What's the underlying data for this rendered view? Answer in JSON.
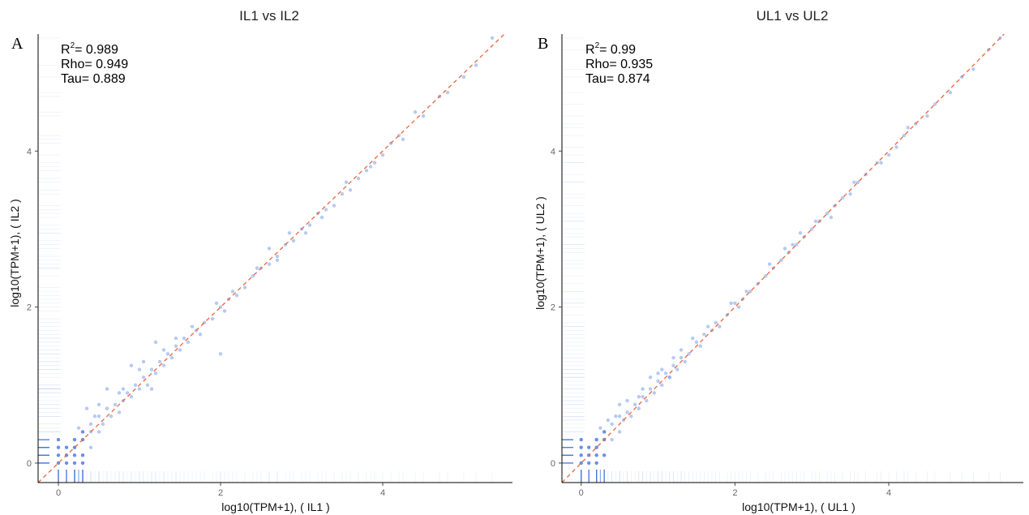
{
  "chart_data": [
    {
      "type": "scatter",
      "panel_label": "A",
      "title": "IL1  vs  IL2",
      "xlabel": "log10(TPM+1),  ( IL1 )",
      "ylabel": "log10(TPM+1),  ( IL2 )",
      "xlim": [
        -0.25,
        5.6
      ],
      "ylim": [
        -0.25,
        5.5
      ],
      "xticks": [
        "0",
        "2",
        "4"
      ],
      "yticks": [
        "0",
        "2",
        "4"
      ],
      "stats": {
        "r2_label": "R",
        "r2_sup": "2",
        "r2_value": "= 0.989",
        "rho": "Rho= 0.949",
        "tau": "Tau= 0.889"
      },
      "reference_line": "y = x (dashed)",
      "rug": "both axes",
      "colors": {
        "points": "#7a9ee8",
        "line": "#e8663c",
        "rug": "#3d6fd6"
      },
      "x": [
        0,
        0,
        0,
        0,
        0.1,
        0.1,
        0.1,
        0.2,
        0.2,
        0.2,
        0.2,
        0.3,
        0.3,
        0.3,
        0.3,
        0.4,
        0.4,
        0.4,
        0.5,
        0.5,
        0.55,
        0.6,
        0.65,
        0.7,
        0.75,
        0.8,
        0.85,
        0.9,
        0.95,
        1.0,
        1.05,
        1.1,
        1.15,
        1.2,
        1.25,
        1.3,
        1.35,
        1.4,
        1.45,
        1.5,
        1.55,
        1.6,
        1.7,
        1.75,
        1.8,
        1.9,
        2.0,
        2.0,
        2.05,
        2.1,
        2.2,
        2.3,
        2.4,
        2.5,
        2.6,
        2.7,
        2.8,
        2.9,
        3.0,
        3.1,
        3.2,
        3.3,
        3.4,
        3.5,
        3.6,
        3.7,
        3.8,
        3.9,
        4.0,
        4.1,
        4.2,
        4.4,
        4.5,
        4.7,
        4.8,
        5.0,
        5.15,
        5.35,
        0.35,
        0.6,
        0.9,
        1.2,
        0.45,
        0.75,
        1.05,
        2.6,
        3.25,
        3.55,
        1.65,
        2.15,
        0.25,
        0.5,
        0.8,
        1.0,
        1.3,
        1.45,
        2.45,
        2.85,
        3.05,
        3.85,
        4.25,
        1.95,
        2.7,
        1.15
      ],
      "y": [
        0,
        0.1,
        0.2,
        0.3,
        0,
        0.1,
        0.2,
        0,
        0.1,
        0.2,
        0.3,
        0,
        0.1,
        0.3,
        0.4,
        0.2,
        0.4,
        0.5,
        0.4,
        0.6,
        0.5,
        0.7,
        0.6,
        0.75,
        0.65,
        0.8,
        0.9,
        0.85,
        1.0,
        0.95,
        1.1,
        1.0,
        1.2,
        1.15,
        1.3,
        1.25,
        1.4,
        1.35,
        1.5,
        1.45,
        1.6,
        1.55,
        1.7,
        1.65,
        1.8,
        1.85,
        1.4,
        2.0,
        1.95,
        2.1,
        2.15,
        2.25,
        2.4,
        2.5,
        2.55,
        2.65,
        2.8,
        2.85,
        3.0,
        3.05,
        3.2,
        3.25,
        3.3,
        3.45,
        3.5,
        3.65,
        3.75,
        3.85,
        3.95,
        4.1,
        4.2,
        4.5,
        4.45,
        4.7,
        4.75,
        4.95,
        5.1,
        5.45,
        0.7,
        0.95,
        1.25,
        1.55,
        0.6,
        0.9,
        1.3,
        2.75,
        3.15,
        3.6,
        1.75,
        2.2,
        0.45,
        0.75,
        0.95,
        1.2,
        1.45,
        1.6,
        2.5,
        2.95,
        2.95,
        3.8,
        4.15,
        2.05,
        2.6,
        0.95
      ]
    },
    {
      "type": "scatter",
      "panel_label": "B",
      "title": "UL1  vs  UL2",
      "xlabel": "log10(TPM+1),  ( UL1 )",
      "ylabel": "log10(TPM+1),  ( UL2 )",
      "xlim": [
        -0.25,
        5.75
      ],
      "ylim": [
        -0.25,
        5.5
      ],
      "xticks": [
        "0",
        "2",
        "4"
      ],
      "yticks": [
        "0",
        "2",
        "4"
      ],
      "stats": {
        "r2_label": "R",
        "r2_sup": "2",
        "r2_value": "= 0.99",
        "rho": "Rho= 0.935",
        "tau": "Tau= 0.874"
      },
      "reference_line": "y = x (dashed)",
      "rug": "both axes",
      "colors": {
        "points": "#7a9ee8",
        "line": "#e8663c",
        "rug": "#3d6fd6"
      },
      "x": [
        0,
        0,
        0,
        0,
        0.1,
        0.1,
        0.1,
        0.2,
        0.2,
        0.2,
        0.2,
        0.3,
        0.3,
        0.3,
        0.4,
        0.4,
        0.5,
        0.5,
        0.55,
        0.6,
        0.65,
        0.7,
        0.75,
        0.8,
        0.85,
        0.9,
        0.95,
        1.0,
        1.05,
        1.1,
        1.15,
        1.2,
        1.25,
        1.3,
        1.35,
        1.4,
        1.5,
        1.55,
        1.6,
        1.7,
        1.75,
        1.8,
        1.9,
        2.0,
        2.05,
        2.1,
        2.2,
        2.3,
        2.4,
        2.5,
        2.6,
        2.7,
        2.8,
        2.9,
        3.0,
        3.1,
        3.2,
        3.3,
        3.4,
        3.5,
        3.6,
        3.7,
        3.85,
        4.0,
        4.1,
        4.2,
        4.35,
        4.5,
        4.6,
        4.8,
        4.95,
        5.1,
        5.3,
        5.45,
        0.35,
        0.6,
        0.9,
        1.2,
        0.45,
        0.75,
        1.05,
        2.65,
        3.25,
        3.55,
        1.65,
        2.15,
        0.25,
        0.5,
        0.8,
        1.0,
        1.3,
        1.45,
        2.45,
        2.85,
        3.05,
        3.9,
        4.25,
        1.95,
        2.75,
        1.15
      ],
      "y": [
        0,
        0.1,
        0.2,
        0.3,
        0,
        0.1,
        0.2,
        0,
        0.1,
        0.2,
        0.3,
        0.1,
        0.3,
        0.4,
        0.3,
        0.5,
        0.4,
        0.6,
        0.55,
        0.65,
        0.6,
        0.75,
        0.7,
        0.85,
        0.8,
        0.95,
        0.9,
        1.05,
        1.0,
        1.15,
        1.1,
        1.25,
        1.2,
        1.35,
        1.3,
        1.4,
        1.55,
        1.5,
        1.65,
        1.7,
        1.8,
        1.75,
        1.9,
        2.05,
        2.0,
        2.1,
        2.2,
        2.3,
        2.4,
        2.5,
        2.6,
        2.7,
        2.8,
        2.9,
        3.0,
        3.1,
        3.2,
        3.3,
        3.4,
        3.45,
        3.6,
        3.7,
        3.85,
        3.95,
        4.05,
        4.2,
        4.35,
        4.45,
        4.6,
        4.75,
        4.95,
        5.05,
        5.3,
        5.45,
        0.55,
        0.8,
        1.1,
        1.35,
        0.6,
        0.85,
        1.2,
        2.75,
        3.15,
        3.6,
        1.75,
        2.2,
        0.45,
        0.75,
        0.95,
        1.15,
        1.45,
        1.6,
        2.55,
        2.95,
        3.1,
        3.85,
        4.3,
        2.05,
        2.8,
        1.1
      ]
    }
  ]
}
